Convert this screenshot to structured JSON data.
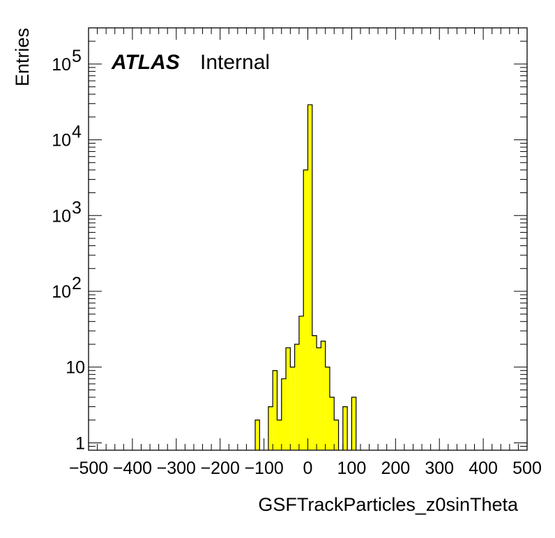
{
  "chart_data": {
    "type": "bar",
    "title": "",
    "xlabel": "GSFTrackParticles_z0sinTheta",
    "ylabel": "Entries",
    "xlim": [
      -500,
      500
    ],
    "ylim": [
      0.8,
      300000
    ],
    "yscale": "log",
    "bin_width": 10,
    "fill_color": "#ffff00",
    "edge_color": "#000000",
    "x_tick_labels": [
      "−500",
      "−400",
      "−300",
      "−200",
      "−100",
      "0",
      "100",
      "200",
      "300",
      "400",
      "500"
    ],
    "x_ticks": [
      -500,
      -400,
      -300,
      -200,
      -100,
      0,
      100,
      200,
      300,
      400,
      500
    ],
    "y_ticks": [
      {
        "value": 1,
        "base": "1",
        "exp": ""
      },
      {
        "value": 10,
        "base": "10",
        "exp": ""
      },
      {
        "value": 100,
        "base": "10",
        "exp": "2"
      },
      {
        "value": 1000,
        "base": "10",
        "exp": "3"
      },
      {
        "value": 10000,
        "base": "10",
        "exp": "4"
      },
      {
        "value": 100000,
        "base": "10",
        "exp": "5"
      }
    ],
    "bins": [
      {
        "x_low": -120,
        "x_high": -110,
        "count": 2
      },
      {
        "x_low": -90,
        "x_high": -80,
        "count": 3
      },
      {
        "x_low": -80,
        "x_high": -70,
        "count": 9
      },
      {
        "x_low": -70,
        "x_high": -60,
        "count": 2
      },
      {
        "x_low": -60,
        "x_high": -50,
        "count": 7
      },
      {
        "x_low": -50,
        "x_high": -40,
        "count": 18
      },
      {
        "x_low": -40,
        "x_high": -30,
        "count": 10
      },
      {
        "x_low": -30,
        "x_high": -20,
        "count": 20
      },
      {
        "x_low": -20,
        "x_high": -10,
        "count": 47
      },
      {
        "x_low": -10,
        "x_high": 0,
        "count": 4000
      },
      {
        "x_low": 0,
        "x_high": 10,
        "count": 29000
      },
      {
        "x_low": 10,
        "x_high": 20,
        "count": 26
      },
      {
        "x_low": 20,
        "x_high": 30,
        "count": 18
      },
      {
        "x_low": 30,
        "x_high": 40,
        "count": 22
      },
      {
        "x_low": 40,
        "x_high": 50,
        "count": 10
      },
      {
        "x_low": 50,
        "x_high": 60,
        "count": 4
      },
      {
        "x_low": 60,
        "x_high": 70,
        "count": 2
      },
      {
        "x_low": 80,
        "x_high": 90,
        "count": 3
      },
      {
        "x_low": 100,
        "x_high": 110,
        "count": 4
      }
    ],
    "annotations": {
      "experiment": "ATLAS",
      "status": "Internal"
    }
  }
}
